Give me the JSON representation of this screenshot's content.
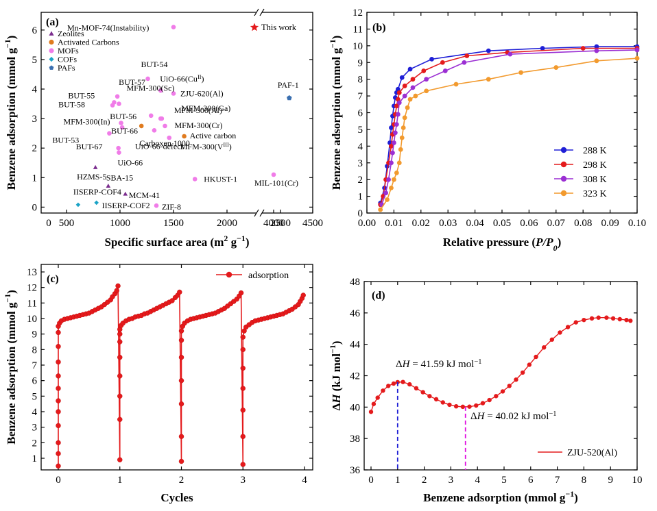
{
  "chart_data": [
    {
      "panel": "(a)",
      "type": "scatter",
      "xlabel": "Specific surface area (m² g⁻¹)",
      "ylabel": "Benzene adsorption (mmol g⁻¹)",
      "x_ticks": [
        0,
        500,
        1000,
        1500,
        2000,
        2500,
        4000,
        4500
      ],
      "y_ticks": [
        0,
        1,
        2,
        3,
        4,
        5,
        6
      ],
      "axis_break": [
        2500,
        4000
      ],
      "ylim": [
        -0.2,
        6.6
      ],
      "legend": [
        {
          "label": "Zeolites",
          "marker": "triangle",
          "color": "#7B2D8E"
        },
        {
          "label": "Activated Carbons",
          "marker": "circle",
          "color": "#E07B1F"
        },
        {
          "label": "MOFs",
          "marker": "circle",
          "color": "#F07CE8"
        },
        {
          "label": "COFs",
          "marker": "diamond",
          "color": "#1BA3C6"
        },
        {
          "label": "PAFs",
          "marker": "pentagon",
          "color": "#3A6FB0"
        }
      ],
      "this_work": {
        "label": "This work",
        "color": "#E41A1C"
      },
      "points": [
        {
          "name": "Mn-MOF-74(Instability)",
          "class": "MOFs",
          "x": 1500,
          "y": 6.1
        },
        {
          "name": "BUT-54",
          "class": "MOFs",
          "x": 1260,
          "y": 4.35
        },
        {
          "name": "UiO-66(Cu^II)",
          "class": "MOFs",
          "x": 1380,
          "y": 3.95
        },
        {
          "name": "BUT-57",
          "class": "MOFs",
          "x": 950,
          "y": 3.75
        },
        {
          "name": "ZJU-620(Al)",
          "class": "MOFs",
          "x": 1500,
          "y": 3.85
        },
        {
          "name": "BUT-55",
          "class": "MOFs",
          "x": 890,
          "y": 3.55
        },
        {
          "name": "BUT-58",
          "class": "MOFs",
          "x": 860,
          "y": 3.45
        },
        {
          "name": "MFM-300(Sc)",
          "class": "MOFs",
          "x": 980,
          "y": 3.5
        },
        {
          "name": "BUT-56",
          "class": "MOFs",
          "x": 1290,
          "y": 3.1
        },
        {
          "name": "MFM-300(Ga)",
          "class": "MOFs",
          "x": 1380,
          "y": 3.0
        },
        {
          "name": "MFM-300(Al)",
          "class": "MOFs",
          "x": 1390,
          "y": 3.0
        },
        {
          "name": "MFM-300(In)",
          "class": "MOFs",
          "x": 1010,
          "y": 2.85
        },
        {
          "name": "MFM-300(Cr)",
          "class": "MOFs",
          "x": 1420,
          "y": 2.75
        },
        {
          "name": "BUT-66",
          "class": "MOFs",
          "x": 1020,
          "y": 2.7
        },
        {
          "name": "BUT-53",
          "class": "MOFs",
          "x": 800,
          "y": 2.5
        },
        {
          "name": "UiO-66-defect",
          "class": "MOFs",
          "x": 1320,
          "y": 2.6
        },
        {
          "name": "MFM-300(V^III)",
          "class": "MOFs",
          "x": 1460,
          "y": 2.35
        },
        {
          "name": "BUT-67",
          "class": "MOFs",
          "x": 970,
          "y": 2.0
        },
        {
          "name": "UiO-66",
          "class": "MOFs",
          "x": 980,
          "y": 1.85
        },
        {
          "name": "HKUST-1",
          "class": "MOFs",
          "x": 1700,
          "y": 0.95
        },
        {
          "name": "MIL-101(Cr)",
          "class": "MOFs",
          "x": 4000,
          "y": 1.1
        },
        {
          "name": "ZIF-8",
          "class": "MOFs",
          "x": 1340,
          "y": 0.05
        },
        {
          "name": "Carboxen 1000",
          "class": "Activated Carbons",
          "x": 1200,
          "y": 2.75
        },
        {
          "name": "Active carbon",
          "class": "Activated Carbons",
          "x": 1600,
          "y": 2.4
        },
        {
          "name": "HZMS-5",
          "class": "Zeolites",
          "x": 540,
          "y": 1.35
        },
        {
          "name": "SBA-15",
          "class": "Zeolites",
          "x": 780,
          "y": 0.72
        },
        {
          "name": "MCM-41",
          "class": "Zeolites",
          "x": 1050,
          "y": 0.45
        },
        {
          "name": "IISERP-COF4",
          "class": "COFs",
          "x": 330,
          "y": 0.08
        },
        {
          "name": "IISERP-COF2",
          "class": "COFs",
          "x": 560,
          "y": 0.15
        },
        {
          "name": "PAF-1",
          "class": "PAFs",
          "x": 4200,
          "y": 3.7
        }
      ]
    },
    {
      "panel": "(b)",
      "type": "line",
      "xlabel": "Relative pressure (P/P₀)",
      "ylabel": "Benzene adsorption (mmol g⁻¹)",
      "xlim": [
        0,
        0.1
      ],
      "ylim": [
        0,
        12
      ],
      "x_ticks": [
        "0.00",
        "0.01",
        "0.02",
        "0.03",
        "0.04",
        "0.05",
        "0.06",
        "0.07",
        "0.08",
        "0.09",
        "0.10"
      ],
      "y_ticks": [
        0,
        1,
        2,
        3,
        4,
        5,
        6,
        7,
        8,
        9,
        10,
        11,
        12
      ],
      "legend_position": "bottom-right",
      "series": [
        {
          "name": "288 K",
          "color": "#1F1FD6",
          "x": [
            0.005,
            0.0065,
            0.0075,
            0.0085,
            0.009,
            0.0095,
            0.01,
            0.0105,
            0.011,
            0.0115,
            0.013,
            0.016,
            0.024,
            0.045,
            0.065,
            0.085,
            0.1
          ],
          "y": [
            0.6,
            1.5,
            2.8,
            4.2,
            5.1,
            5.8,
            6.4,
            6.9,
            7.2,
            7.4,
            8.1,
            8.6,
            9.2,
            9.7,
            9.85,
            9.95,
            9.95
          ]
        },
        {
          "name": "298 K",
          "color": "#E41A1C",
          "x": [
            0.005,
            0.006,
            0.007,
            0.008,
            0.009,
            0.0095,
            0.01,
            0.0105,
            0.011,
            0.0115,
            0.012,
            0.014,
            0.017,
            0.021,
            0.028,
            0.037,
            0.052,
            0.08,
            0.1
          ],
          "y": [
            0.5,
            1.0,
            2.0,
            3.0,
            4.0,
            4.7,
            5.3,
            5.9,
            6.4,
            6.8,
            7.2,
            7.6,
            8.0,
            8.5,
            9.0,
            9.4,
            9.6,
            9.85,
            9.85
          ]
        },
        {
          "name": "308 K",
          "color": "#9B2FD3",
          "x": [
            0.0055,
            0.007,
            0.008,
            0.009,
            0.0095,
            0.01,
            0.0105,
            0.011,
            0.0115,
            0.012,
            0.014,
            0.017,
            0.022,
            0.029,
            0.036,
            0.053,
            0.085,
            0.1
          ],
          "y": [
            0.5,
            1.2,
            2.0,
            3.0,
            3.6,
            4.2,
            4.8,
            5.3,
            5.9,
            6.6,
            7.0,
            7.5,
            8.0,
            8.5,
            9.0,
            9.5,
            9.7,
            9.75
          ]
        },
        {
          "name": "323 K",
          "color": "#F29A2E",
          "x": [
            0.005,
            0.0075,
            0.009,
            0.01,
            0.011,
            0.012,
            0.0125,
            0.013,
            0.0135,
            0.014,
            0.015,
            0.016,
            0.018,
            0.022,
            0.033,
            0.045,
            0.057,
            0.07,
            0.085,
            0.1
          ],
          "y": [
            0.2,
            0.8,
            1.5,
            2.0,
            2.4,
            3.0,
            3.8,
            4.5,
            5.1,
            5.7,
            6.3,
            6.8,
            7.0,
            7.3,
            7.7,
            8.0,
            8.4,
            8.7,
            9.1,
            9.25
          ]
        }
      ]
    },
    {
      "panel": "(c)",
      "type": "line",
      "xlabel": "Cycles",
      "ylabel": "Benzene adsorption (mmol g⁻¹)",
      "xlim": [
        -0.3,
        4.2
      ],
      "ylim": [
        0,
        13
      ],
      "x_ticks": [
        0,
        1,
        2,
        3,
        4
      ],
      "y_ticks": [
        1,
        2,
        3,
        4,
        5,
        6,
        7,
        8,
        9,
        10,
        11,
        12,
        13
      ],
      "legend_position": "top-right",
      "series": [
        {
          "name": "adsorption",
          "color": "#E41A1C",
          "cycles": [
            {
              "x": [
                0,
                0,
                0,
                0,
                0,
                0,
                0,
                0,
                0,
                0,
                0,
                0,
                0.02,
                0.05,
                0.1,
                0.15,
                0.2,
                0.25,
                0.3,
                0.35,
                0.4,
                0.45,
                0.5,
                0.55,
                0.6,
                0.65,
                0.7,
                0.75,
                0.8,
                0.85,
                0.88,
                0.92,
                0.95,
                0.97
              ],
              "y": [
                0.5,
                1.3,
                2.0,
                3.1,
                4.0,
                4.7,
                5.5,
                6.3,
                7.2,
                8.2,
                9.1,
                9.5,
                9.7,
                9.85,
                9.95,
                10.0,
                10.05,
                10.1,
                10.15,
                10.2,
                10.25,
                10.3,
                10.35,
                10.45,
                10.55,
                10.65,
                10.75,
                10.9,
                11.05,
                11.2,
                11.4,
                11.6,
                11.8,
                12.1
              ]
            },
            {
              "x": [
                1,
                1,
                1,
                1,
                1,
                1,
                1,
                1,
                1.02,
                1.05,
                1.1,
                1.15,
                1.2,
                1.25,
                1.3,
                1.35,
                1.4,
                1.45,
                1.5,
                1.55,
                1.6,
                1.65,
                1.7,
                1.75,
                1.8,
                1.85,
                1.9,
                1.94,
                1.97
              ],
              "y": [
                0.9,
                3.5,
                5.0,
                6.3,
                7.5,
                8.5,
                9.0,
                9.3,
                9.55,
                9.7,
                9.85,
                9.95,
                10.0,
                10.1,
                10.15,
                10.2,
                10.3,
                10.35,
                10.45,
                10.55,
                10.65,
                10.75,
                10.85,
                10.95,
                11.05,
                11.15,
                11.35,
                11.5,
                11.7
              ]
            },
            {
              "x": [
                2,
                2,
                2,
                2,
                2,
                2,
                2,
                2.02,
                2.05,
                2.1,
                2.15,
                2.2,
                2.25,
                2.3,
                2.35,
                2.4,
                2.45,
                2.5,
                2.55,
                2.6,
                2.65,
                2.7,
                2.75,
                2.8,
                2.85,
                2.9,
                2.94,
                2.97
              ],
              "y": [
                0.8,
                2.4,
                4.5,
                6.0,
                7.5,
                8.6,
                9.2,
                9.5,
                9.7,
                9.85,
                9.95,
                10.0,
                10.05,
                10.1,
                10.15,
                10.2,
                10.25,
                10.3,
                10.35,
                10.45,
                10.55,
                10.65,
                10.8,
                10.95,
                11.1,
                11.25,
                11.45,
                11.65
              ]
            },
            {
              "x": [
                3,
                3,
                3,
                3,
                3,
                3,
                3,
                3.02,
                3.05,
                3.1,
                3.15,
                3.2,
                3.25,
                3.3,
                3.35,
                3.4,
                3.45,
                3.5,
                3.55,
                3.6,
                3.65,
                3.7,
                3.75,
                3.8,
                3.85,
                3.9,
                3.93,
                3.96,
                3.98
              ],
              "y": [
                0.6,
                2.4,
                4.1,
                5.5,
                6.8,
                8.0,
                8.8,
                9.2,
                9.45,
                9.6,
                9.75,
                9.85,
                9.9,
                9.95,
                10.0,
                10.05,
                10.1,
                10.15,
                10.2,
                10.25,
                10.3,
                10.4,
                10.5,
                10.6,
                10.75,
                10.9,
                11.1,
                11.3,
                11.5
              ]
            }
          ]
        }
      ]
    },
    {
      "panel": "(d)",
      "type": "line",
      "xlabel": "Benzene adsorption (mmol g⁻¹)",
      "ylabel": "ΔH (kJ mol⁻¹)",
      "xlim": [
        -0.2,
        10
      ],
      "ylim": [
        36,
        48
      ],
      "x_ticks": [
        0,
        1,
        2,
        3,
        4,
        5,
        6,
        7,
        8,
        9,
        10
      ],
      "y_ticks": [
        36,
        38,
        40,
        42,
        44,
        46,
        48
      ],
      "legend_position": "bottom-right",
      "annotations": [
        {
          "text": "ΔH = 41.59 kJ mol⁻¹",
          "x": 1.0,
          "y": 41.59,
          "color": "#1F1FD6"
        },
        {
          "text": "ΔH = 40.02 kJ mol⁻¹",
          "x": 3.55,
          "y": 40.02,
          "color": "#E010E0"
        }
      ],
      "series": [
        {
          "name": "ZJU-520(Al)",
          "color": "#E41A1C",
          "x": [
            0,
            0.1,
            0.25,
            0.45,
            0.65,
            0.85,
            1.0,
            1.2,
            1.45,
            1.7,
            1.95,
            2.2,
            2.45,
            2.7,
            2.95,
            3.2,
            3.45,
            3.7,
            3.95,
            4.2,
            4.45,
            4.7,
            4.95,
            5.2,
            5.45,
            5.7,
            5.95,
            6.2,
            6.5,
            6.8,
            7.1,
            7.4,
            7.7,
            8.0,
            8.3,
            8.55,
            8.85,
            9.1,
            9.35,
            9.6,
            9.75
          ],
          "y": [
            39.7,
            40.2,
            40.6,
            41.05,
            41.35,
            41.5,
            41.59,
            41.6,
            41.45,
            41.2,
            40.95,
            40.7,
            40.5,
            40.3,
            40.15,
            40.05,
            40.02,
            40.03,
            40.1,
            40.25,
            40.45,
            40.7,
            41.0,
            41.35,
            41.75,
            42.2,
            42.7,
            43.2,
            43.8,
            44.3,
            44.75,
            45.1,
            45.4,
            45.55,
            45.65,
            45.7,
            45.7,
            45.65,
            45.6,
            45.55,
            45.5
          ]
        }
      ]
    }
  ]
}
